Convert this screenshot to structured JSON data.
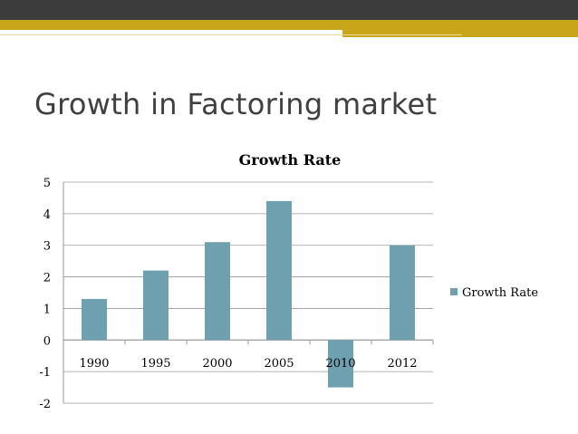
{
  "slide": {
    "title": "Growth in Factoring market"
  },
  "colors": {
    "bar": "#6fa0b0",
    "top_bar": "#3c3c3c",
    "accent": "#c9a617",
    "gridline": "#9a9a9a"
  },
  "chart_data": {
    "type": "bar",
    "title": "Growth Rate",
    "categories": [
      "1990",
      "1995",
      "2000",
      "2005",
      "2010",
      "2012"
    ],
    "series": [
      {
        "name": "Growth Rate",
        "values": [
          1.3,
          2.2,
          3.1,
          4.4,
          -1.5,
          3.0
        ]
      }
    ],
    "ylim": [
      -2,
      5
    ],
    "yticks": [
      "-2",
      "-1",
      "0",
      "1",
      "2",
      "3",
      "4",
      "5"
    ],
    "grid": true,
    "legend": "right"
  }
}
